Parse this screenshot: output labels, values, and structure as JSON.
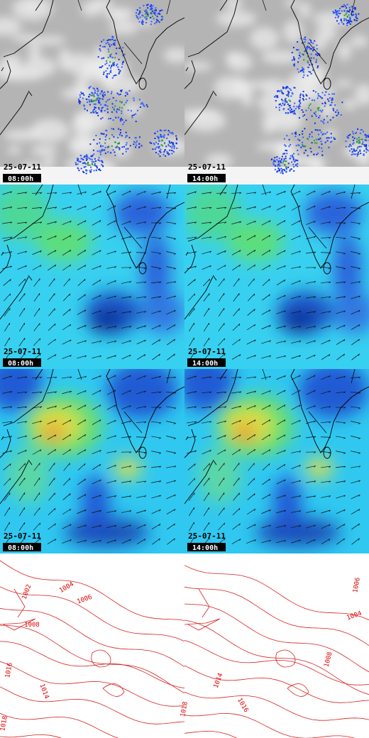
{
  "rows": [
    {
      "kind": "satellite",
      "panels": [
        {
          "date": "25-07-11",
          "time": "08:00h"
        },
        {
          "date": "25-07-11",
          "time": "14:00h"
        }
      ]
    },
    {
      "kind": "wind-low",
      "panels": [
        {
          "date": "25-07-11",
          "time": "08:00h"
        },
        {
          "date": "25-07-11",
          "time": "14:00h"
        }
      ]
    },
    {
      "kind": "wind-high",
      "panels": [
        {
          "date": "25-07-11",
          "time": "08:00h"
        },
        {
          "date": "25-07-11",
          "time": "14:00h"
        }
      ]
    }
  ],
  "isobar_labels": [
    [
      "1002",
      "1004",
      "1006",
      "1008",
      "1016",
      "1014",
      "1018"
    ],
    [
      "1006",
      "1004",
      "1008",
      "1014",
      "1016",
      "1018"
    ]
  ]
}
